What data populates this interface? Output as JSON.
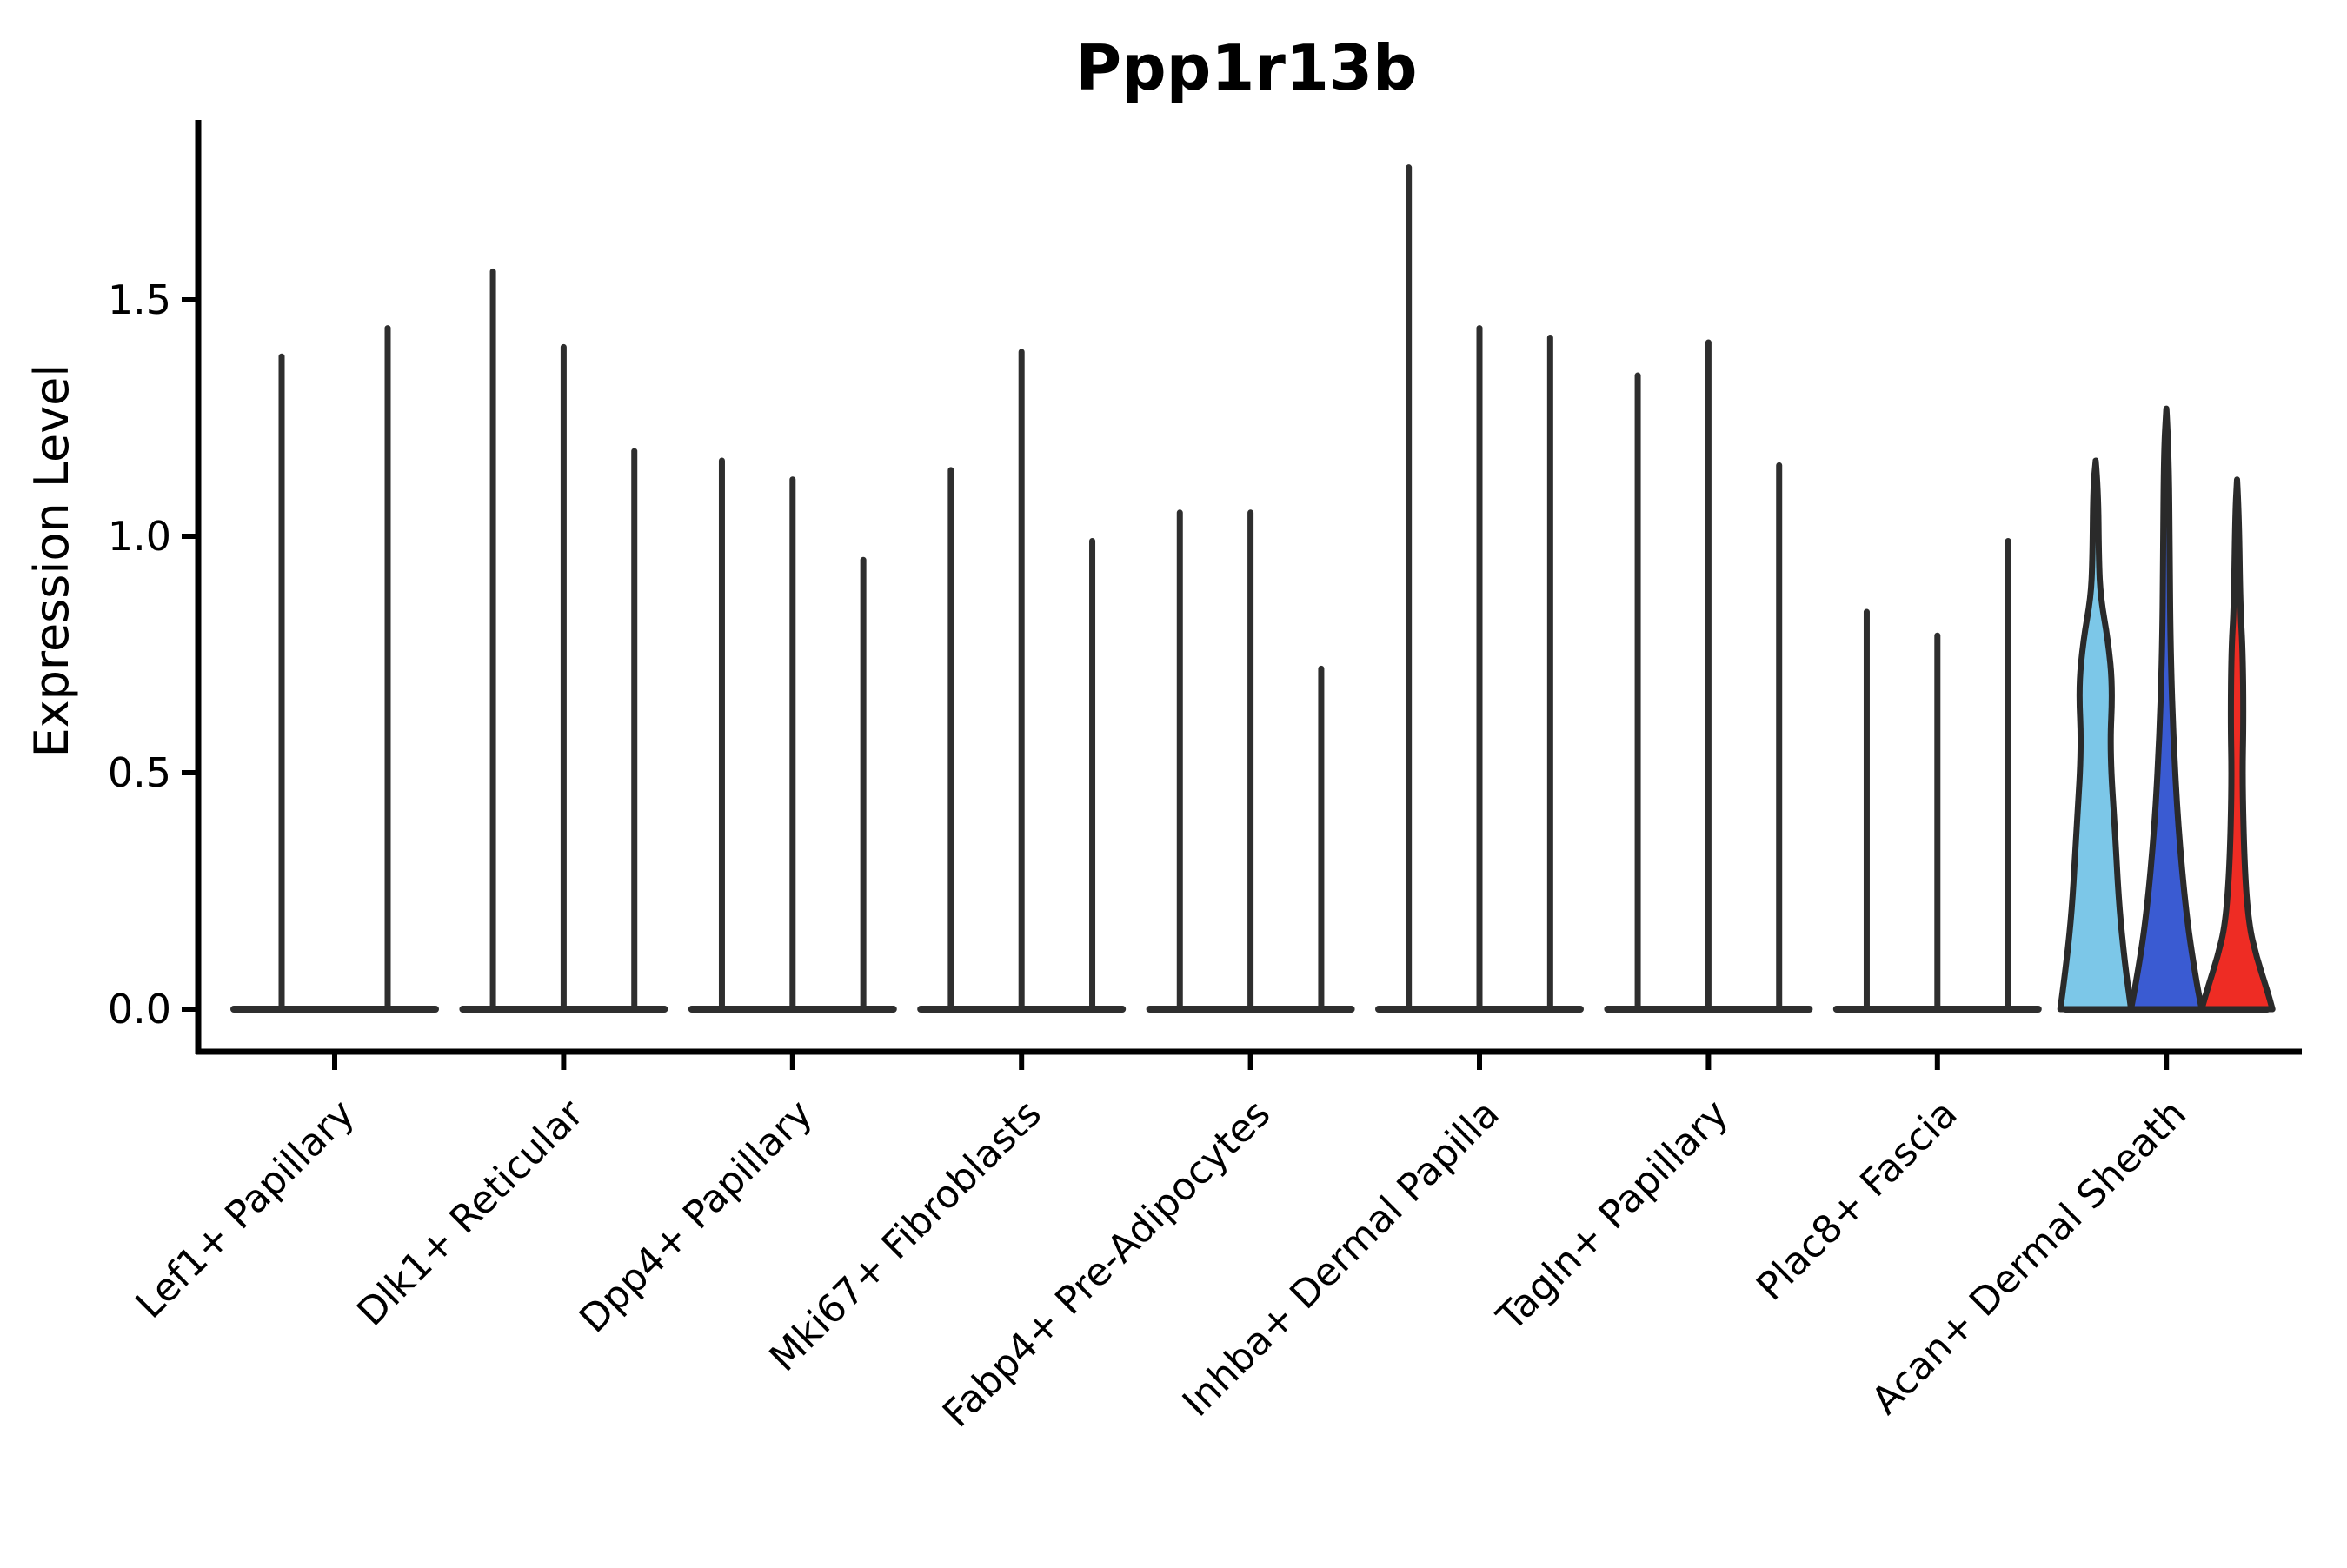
{
  "chart_data": {
    "type": "violin",
    "title": "Ppp1r13b",
    "ylabel": "Expression Level",
    "xlabel": "",
    "grid": false,
    "legend": "none",
    "ytick_labels": [
      "0.0",
      "0.5",
      "1.0",
      "1.5"
    ],
    "ytick_values": [
      0.0,
      0.5,
      1.0,
      1.5
    ],
    "ylim": [
      -0.07,
      1.88
    ],
    "categories": [
      "Lef1+ Papillary",
      "Dlk1+ Reticular",
      "Dpp4+ Papillary",
      "Mki67+ Fibroblasts",
      "Fabp4+ Pre-Adipocytes",
      "Inhba+ Dermal Papilla",
      "Tagln+ Papillary",
      "Plac8+ Fascia",
      "Acan+ Dermal Sheath"
    ],
    "groups": [
      {
        "category": "Lef1+ Papillary",
        "violins": [
          {
            "style": "spike",
            "max": 1.38
          },
          {
            "style": "spike",
            "max": 1.44
          }
        ]
      },
      {
        "category": "Dlk1+ Reticular",
        "violins": [
          {
            "style": "spike",
            "max": 1.56
          },
          {
            "style": "spike",
            "max": 1.4
          },
          {
            "style": "spike",
            "max": 1.18
          }
        ]
      },
      {
        "category": "Dpp4+ Papillary",
        "violins": [
          {
            "style": "spike",
            "max": 1.16
          },
          {
            "style": "spike",
            "max": 1.12
          },
          {
            "style": "spike",
            "max": 0.95
          }
        ]
      },
      {
        "category": "Mki67+ Fibroblasts",
        "violins": [
          {
            "style": "spike",
            "max": 1.14
          },
          {
            "style": "spike",
            "max": 1.39
          },
          {
            "style": "spike",
            "max": 0.99
          }
        ]
      },
      {
        "category": "Fabp4+ Pre-Adipocytes",
        "violins": [
          {
            "style": "spike",
            "max": 1.05
          },
          {
            "style": "spike",
            "max": 1.05
          },
          {
            "style": "spike",
            "max": 0.72
          }
        ]
      },
      {
        "category": "Inhba+ Dermal Papilla",
        "violins": [
          {
            "style": "spike",
            "max": 1.78
          },
          {
            "style": "spike",
            "max": 1.44
          },
          {
            "style": "spike",
            "max": 1.42
          }
        ]
      },
      {
        "category": "Tagln+ Papillary",
        "violins": [
          {
            "style": "spike",
            "max": 1.34
          },
          {
            "style": "spike",
            "max": 1.41
          },
          {
            "style": "spike",
            "max": 1.15
          }
        ]
      },
      {
        "category": "Plac8+ Fascia",
        "violins": [
          {
            "style": "spike",
            "max": 0.84
          },
          {
            "style": "spike",
            "max": 0.79
          },
          {
            "style": "spike",
            "max": 0.99
          }
        ]
      },
      {
        "category": "Acan+ Dermal Sheath",
        "violins": [
          {
            "style": "filled",
            "max": 1.16,
            "color": "#7CC7E8",
            "profile": [
              [
                1.16,
                0.0
              ],
              [
                1.1,
                0.07
              ],
              [
                0.95,
                0.09
              ],
              [
                0.87,
                0.14
              ],
              [
                0.78,
                0.35
              ],
              [
                0.68,
                0.48
              ],
              [
                0.55,
                0.4
              ],
              [
                0.37,
                0.55
              ],
              [
                0.22,
                0.66
              ],
              [
                0.1,
                0.82
              ],
              [
                0.0,
                1.0
              ]
            ]
          },
          {
            "style": "filled",
            "max": 1.27,
            "color": "#3A5BD2",
            "profile": [
              [
                1.27,
                0.0
              ],
              [
                1.18,
                0.07
              ],
              [
                0.95,
                0.09
              ],
              [
                0.75,
                0.12
              ],
              [
                0.57,
                0.2
              ],
              [
                0.39,
                0.33
              ],
              [
                0.2,
                0.56
              ],
              [
                0.07,
                0.82
              ],
              [
                0.0,
                1.0
              ]
            ]
          },
          {
            "style": "filled",
            "max": 1.12,
            "color": "#EE2C24",
            "profile": [
              [
                1.12,
                0.0
              ],
              [
                1.05,
                0.05
              ],
              [
                0.85,
                0.09
              ],
              [
                0.76,
                0.16
              ],
              [
                0.61,
                0.18
              ],
              [
                0.48,
                0.15
              ],
              [
                0.3,
                0.21
              ],
              [
                0.18,
                0.33
              ],
              [
                0.11,
                0.55
              ],
              [
                0.04,
                0.85
              ],
              [
                0.0,
                1.0
              ]
            ]
          }
        ]
      }
    ],
    "styles": {
      "spike_color": "#2E2E2E",
      "outline_color": "#2A2A2A",
      "axis_color": "#000000",
      "background": "#FFFFFF"
    }
  }
}
